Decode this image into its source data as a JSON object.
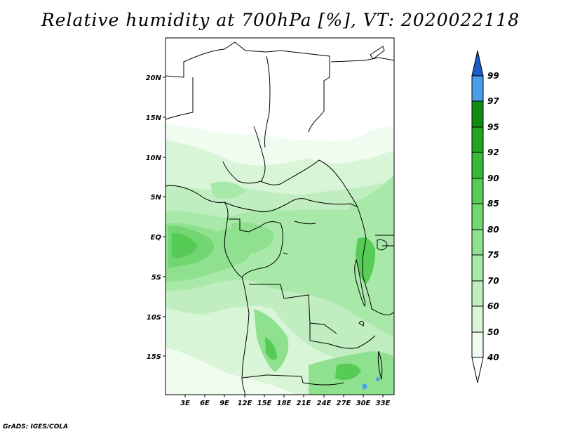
{
  "title": "Relative humidity at 700hPa [%], VT: 2020022118",
  "credit": "GrADS: IGES/COLA",
  "map": {
    "lat_labels": [
      "20N",
      "15N",
      "10N",
      "5N",
      "EQ",
      "5S",
      "10S",
      "15S"
    ],
    "lon_labels": [
      "3E",
      "6E",
      "9E",
      "12E",
      "15E",
      "18E",
      "21E",
      "24E",
      "27E",
      "30E",
      "33E"
    ]
  },
  "colorbar": {
    "levels": [
      "40",
      "50",
      "60",
      "70",
      "75",
      "80",
      "85",
      "90",
      "92",
      "95",
      "97",
      "99"
    ],
    "colors": [
      "#f0fcf0",
      "#d8f5d8",
      "#c0eec0",
      "#a8e8a8",
      "#8fe08f",
      "#72d672",
      "#56cc56",
      "#3ab83a",
      "#22a522",
      "#128c12",
      "#4a9de8",
      "#2a7ad8",
      "#1a5cc8"
    ]
  }
}
